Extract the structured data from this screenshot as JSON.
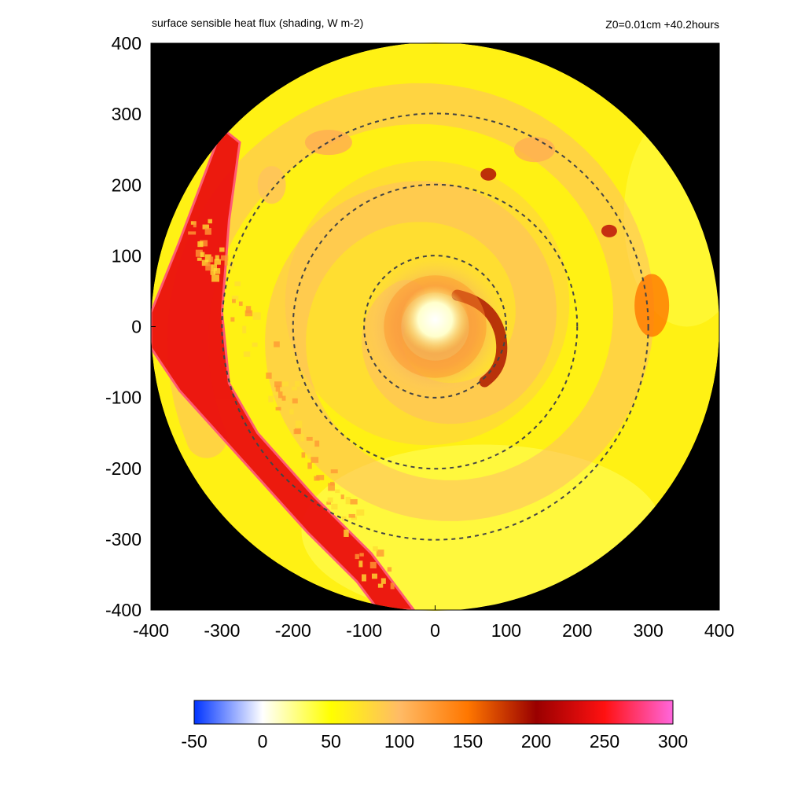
{
  "header": {
    "title": "surface sensible heat flux (shading, W m-2)",
    "info": "Z0=0.01cm  +40.2hours"
  },
  "chart_data": {
    "type": "heatmap",
    "title": "surface sensible heat flux (shading, W m-2)",
    "annotation": "Z0=0.01cm  +40.2hours",
    "xlim": [
      -400,
      400
    ],
    "ylim": [
      -400,
      400
    ],
    "x_ticks": [
      "-400",
      "-300",
      "-200",
      "-100",
      "0",
      "100",
      "200",
      "300",
      "400"
    ],
    "y_ticks": [
      "400",
      "300",
      "200",
      "100",
      "0",
      "-100",
      "-200",
      "-300",
      "-400"
    ],
    "domain_radius": 400,
    "outside_domain_color": "#000000",
    "dashed_circles_radii": [
      100,
      200,
      300
    ],
    "colorbar": {
      "ticks": [
        "-50",
        "0",
        "50",
        "100",
        "150",
        "200",
        "250",
        "300"
      ],
      "range": [
        -50,
        300
      ],
      "stops": [
        {
          "value": -50,
          "color": "#0033ff"
        },
        {
          "value": 0,
          "color": "#ffffff"
        },
        {
          "value": 50,
          "color": "#ffff00"
        },
        {
          "value": 100,
          "color": "#ffbb66"
        },
        {
          "value": 150,
          "color": "#ff7700"
        },
        {
          "value": 200,
          "color": "#990000"
        },
        {
          "value": 250,
          "color": "#ff1111"
        },
        {
          "value": 300,
          "color": "#ff66dd"
        }
      ]
    },
    "features": [
      {
        "name": "eye",
        "x": 0,
        "y": 10,
        "approx_value": 20
      },
      {
        "name": "inner-core-ring",
        "radius": 60,
        "approx_value": 130
      },
      {
        "name": "spiral-band",
        "approx_value": 100
      },
      {
        "name": "ambient",
        "approx_value": 60
      },
      {
        "name": "frontal-band-west",
        "approx_value": 240
      }
    ]
  }
}
